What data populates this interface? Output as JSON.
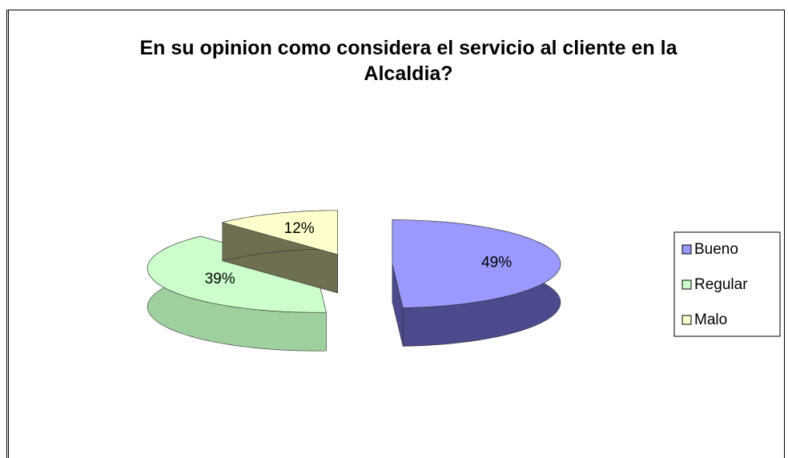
{
  "chart_data": {
    "type": "pie",
    "title": "En su opinion como considera el servicio al cliente en la Alcaldia?",
    "categories": [
      "Bueno",
      "Regular",
      "Malo"
    ],
    "values": [
      49,
      39,
      12
    ],
    "value_labels": [
      "49%",
      "39%",
      "12%"
    ],
    "colors": [
      "#9999ff",
      "#ccffcc",
      "#ffffcc"
    ],
    "side_colors": [
      "#4a4a8c",
      "#9fd09f",
      "#6e6e50"
    ],
    "legend": "right"
  }
}
